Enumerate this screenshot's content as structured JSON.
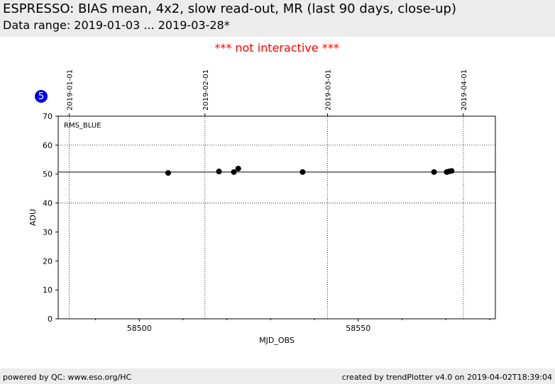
{
  "header": {
    "title": "ESPRESSO: BIAS mean, 4x2, slow read-out, MR (last 90 days, close-up)",
    "subtitle": "Data range: 2019-01-03 ... 2019-03-28*"
  },
  "notice": "*** not interactive ***",
  "badge": "5",
  "footer": {
    "left": "powered by QC: www.eso.org/HC",
    "right": "created by trendPlotter v4.0 on 2019-04-02T18:39:04"
  },
  "chart_data": {
    "type": "scatter",
    "label": "RMS_BLUE",
    "xlabel": "MJD_OBS",
    "ylabel": "ADU",
    "color": "#000000",
    "x": [
      58506.6,
      58518.2,
      58521.6,
      58522.6,
      58537.3,
      58567.3,
      58570.2,
      58570.7,
      58571.3
    ],
    "values": [
      50.4,
      50.9,
      50.7,
      51.9,
      50.7,
      50.7,
      50.7,
      50.9,
      51.1
    ],
    "reference_line": 50.7,
    "xlim": [
      58481.5,
      58581.3
    ],
    "ylim": [
      0,
      70
    ],
    "xticks": [
      58500,
      58550
    ],
    "xminorticks": [
      58490,
      58510,
      58520,
      58530,
      58540,
      58560,
      58570,
      58580
    ],
    "yticks": [
      0,
      10,
      20,
      30,
      40,
      50,
      60,
      70
    ],
    "ygrid": [
      40,
      60
    ],
    "top_ticks": [
      {
        "value": 58484,
        "label": "2019-01-01"
      },
      {
        "value": 58515,
        "label": "2019-02-01"
      },
      {
        "value": 58543,
        "label": "2019-03-01"
      },
      {
        "value": 58574,
        "label": "2019-04-01"
      }
    ]
  }
}
